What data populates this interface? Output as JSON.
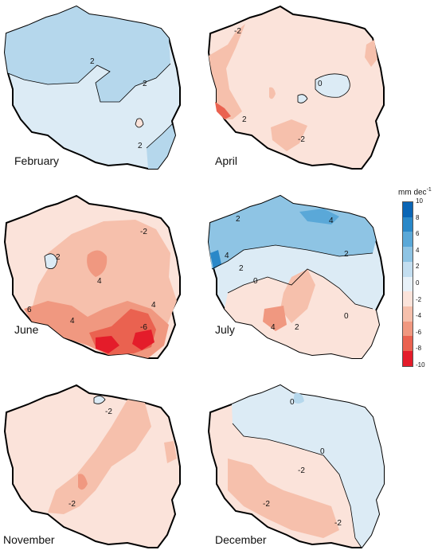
{
  "panels": [
    {
      "id": "feb",
      "month": "February",
      "base": "#dcebf5",
      "contours": [
        "2",
        "2",
        "2"
      ]
    },
    {
      "id": "apr",
      "month": "April",
      "base": "#fbe3da",
      "contours": [
        "-2",
        "0",
        "2",
        "-2"
      ]
    },
    {
      "id": "jun",
      "month": "June",
      "base": "#f6c7b4",
      "contours": [
        "-2",
        "2",
        "4",
        "-6",
        "4",
        "6",
        "4"
      ]
    },
    {
      "id": "jul",
      "month": "July",
      "base": "#dcebf5",
      "contours": [
        "4",
        "2",
        "4",
        "2",
        "0",
        "0",
        "2",
        "4",
        "2"
      ]
    },
    {
      "id": "nov",
      "month": "November",
      "base": "#fbe3da",
      "contours": [
        "-2",
        "-2"
      ]
    },
    {
      "id": "dec",
      "month": "December",
      "base": "#fbe3da",
      "contours": [
        "0",
        "0",
        "-2",
        "-2",
        "-2"
      ]
    }
  ],
  "legend": {
    "title": "mm dec",
    "title_exp": "-1",
    "ticks": [
      "10",
      "8",
      "6",
      "4",
      "2",
      "0",
      "-2",
      "-4",
      "-6",
      "-8",
      "-10"
    ],
    "colors": [
      "#0a65b5",
      "#2a88c8",
      "#5aa8d8",
      "#8ec4e4",
      "#c3def0",
      "#e8f1f8",
      "#fbe3da",
      "#f6c0ac",
      "#f09880",
      "#ea6250",
      "#e41c2a"
    ]
  }
}
